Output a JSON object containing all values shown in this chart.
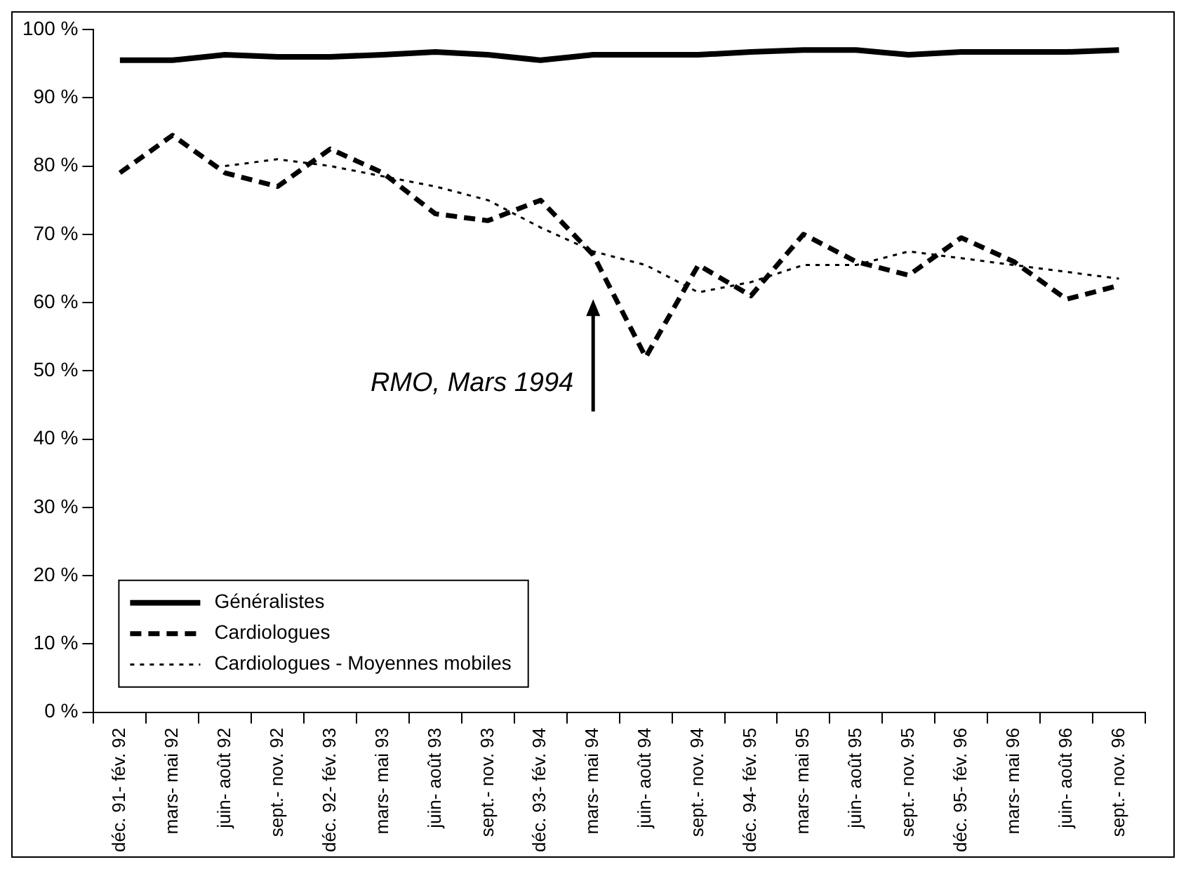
{
  "chart_data": {
    "type": "line",
    "categories": [
      "déc. 91- fév. 92",
      "mars- mai 92",
      "juin- août 92",
      "sept.- nov. 92",
      "déc. 92- fév. 93",
      "mars- mai 93",
      "juin- août 93",
      "sept.- nov. 93",
      "déc. 93- fév. 94",
      "mars- mai 94",
      "juin- août 94",
      "sept.- nov. 94",
      "déc. 94- fév. 95",
      "mars- mai 95",
      "juin- août 95",
      "sept.- nov. 95",
      "déc. 95- fév. 96",
      "mars- mai 96",
      "juin- août 96",
      "sept.- nov. 96"
    ],
    "series": [
      {
        "name": "Généralistes",
        "color": "#000000",
        "line_style": "solid",
        "values": [
          95.5,
          95.5,
          96.3,
          96,
          96,
          96.3,
          96.7,
          96.3,
          95.5,
          96.3,
          96.3,
          96.3,
          96.7,
          97,
          97,
          96.3,
          96.7,
          96.7,
          96.7,
          97
        ]
      },
      {
        "name": "Cardiologues",
        "color": "#000000",
        "line_style": "dashed",
        "values": [
          79,
          84.5,
          79,
          77,
          82.5,
          79,
          73,
          72,
          75,
          67,
          52,
          65.5,
          61,
          70,
          66,
          64,
          69.5,
          66,
          60.5,
          62.5
        ]
      },
      {
        "name": "Cardiologues - Moyennes mobiles",
        "color": "#000000",
        "line_style": "dotted",
        "values": [
          null,
          null,
          80,
          81,
          80,
          78.5,
          77,
          75,
          71,
          67.5,
          65.5,
          61.5,
          63,
          65.5,
          65.5,
          67.5,
          66.5,
          65.5,
          64.5,
          63.5
        ]
      }
    ],
    "ylim": [
      0,
      100
    ],
    "yticks": [
      {
        "value": 0,
        "label": "0 %"
      },
      {
        "value": 10,
        "label": "10 %"
      },
      {
        "value": 20,
        "label": "20 %"
      },
      {
        "value": 30,
        "label": "30 %"
      },
      {
        "value": 40,
        "label": "40 %"
      },
      {
        "value": 50,
        "label": "50 %"
      },
      {
        "value": 60,
        "label": "60 %"
      },
      {
        "value": 70,
        "label": "70 %"
      },
      {
        "value": 80,
        "label": "80 %"
      },
      {
        "value": 90,
        "label": "90 %"
      },
      {
        "value": 100,
        "label": "100 %"
      }
    ],
    "legend": "bottom left",
    "marker": "none",
    "annotations": [
      "RMO, Mars 1994"
    ]
  }
}
